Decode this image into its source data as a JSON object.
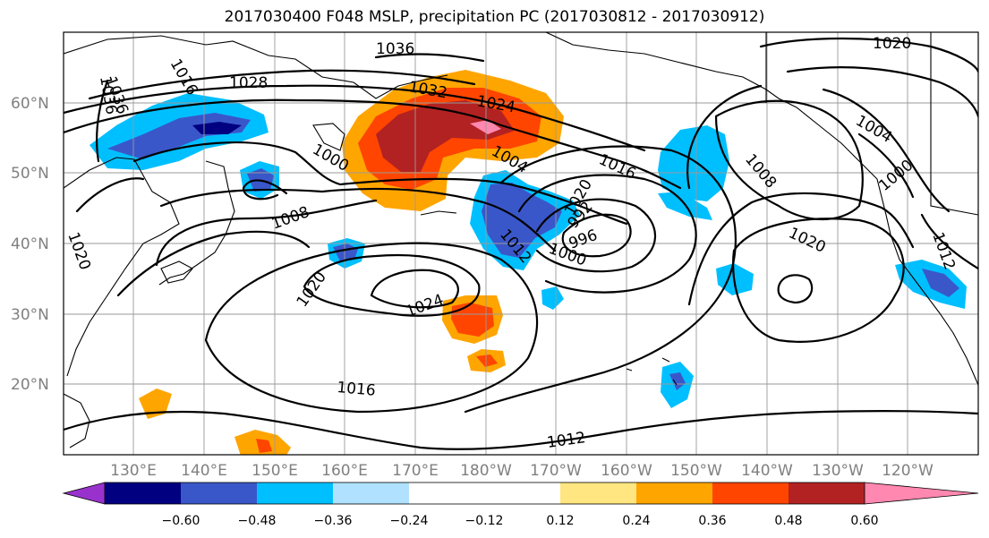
{
  "title": "2017030400 F048 MSLP, precipitation PC (2017030812 - 2017030912)",
  "map": {
    "lat_labels": [
      "60°N",
      "50°N",
      "40°N",
      "30°N",
      "20°N"
    ],
    "lon_labels": [
      "130°E",
      "140°E",
      "150°E",
      "160°E",
      "170°E",
      "180°W",
      "170°W",
      "160°W",
      "150°W",
      "140°W",
      "130°W",
      "120°W"
    ],
    "isobar_labels": [
      {
        "text": "1036"
      },
      {
        "text": "1036"
      },
      {
        "text": "1036"
      },
      {
        "text": "1028"
      },
      {
        "text": "1032"
      },
      {
        "text": "1024"
      },
      {
        "text": "1020"
      },
      {
        "text": "1004"
      },
      {
        "text": "1016"
      },
      {
        "text": "1004"
      },
      {
        "text": "1008"
      },
      {
        "text": "1000"
      },
      {
        "text": "1000"
      },
      {
        "text": "1008"
      },
      {
        "text": "1012"
      },
      {
        "text": "1000"
      },
      {
        "text": "992"
      },
      {
        "text": "996"
      },
      {
        "text": "1020"
      },
      {
        "text": "1020"
      },
      {
        "text": "1024"
      },
      {
        "text": "1020"
      },
      {
        "text": "1016"
      },
      {
        "text": "1012"
      },
      {
        "text": "1012"
      },
      {
        "text": "1016"
      },
      {
        "text": "1020"
      }
    ]
  },
  "colorbar": {
    "ticks": [
      "−0.60",
      "−0.48",
      "−0.36",
      "−0.24",
      "−0.12",
      "0.12",
      "0.24",
      "0.36",
      "0.48",
      "0.60"
    ],
    "colors": {
      "lt_-0.60": "#9932cc",
      "-0.60_-0.48": "#000080",
      "-0.48_-0.36": "#3a57c9",
      "-0.36_-0.24": "#00bfff",
      "-0.24_-0.12": "#b0e2ff",
      "-0.12_0.12": "#ffffff",
      "0.12_0.24": "#ffe680",
      "0.24_0.36": "#ffa500",
      "0.36_0.48": "#ff4500",
      "0.48_0.60": "#b22222",
      "gt_0.60": "#ff88b0"
    }
  }
}
